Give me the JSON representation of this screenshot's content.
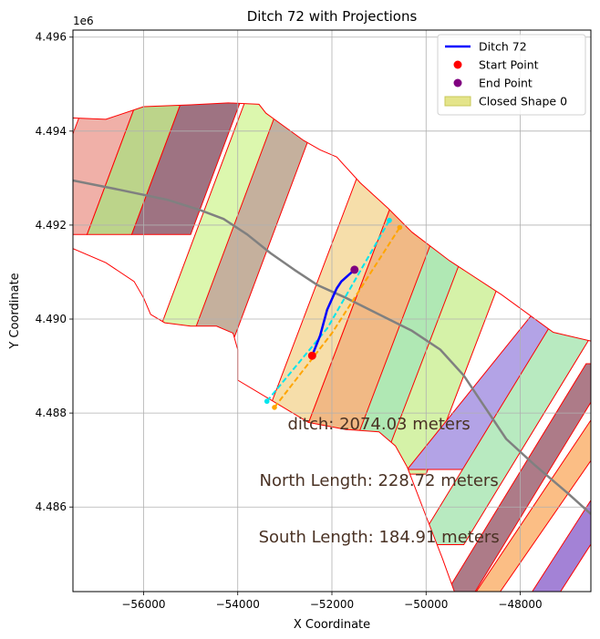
{
  "chart_data": {
    "type": "line",
    "title": "Ditch 72 with Projections",
    "xlabel": "X Coordinate",
    "ylabel": "Y Coordinate",
    "y_offset_label": "1e6",
    "xlim": [
      -57500,
      -46500
    ],
    "ylim": [
      4484200,
      4496150
    ],
    "x_ticks": [
      -56000,
      -54000,
      -52000,
      -50000,
      -48000
    ],
    "x_tick_labels": [
      "−56000",
      "−54000",
      "−52000",
      "−50000",
      "−48000"
    ],
    "y_ticks": [
      4486000,
      4488000,
      4490000,
      4492000,
      4494000,
      4496000
    ],
    "y_tick_labels": [
      "4.486",
      "4.488",
      "4.490",
      "4.492",
      "4.494",
      "4.496"
    ],
    "grid": true,
    "legend_position": "top-right",
    "legend": [
      {
        "label": "Ditch 72",
        "kind": "line",
        "color": "#0000ff"
      },
      {
        "label": "Start Point",
        "kind": "point",
        "color": "#ff0000"
      },
      {
        "label": "End Point",
        "kind": "point",
        "color": "#800080"
      },
      {
        "label": "Closed Shape 0",
        "kind": "patch",
        "color": "#e4e48a"
      }
    ],
    "boundary": [
      [
        -57500,
        4494280
      ],
      [
        -56800,
        4494250
      ],
      [
        -56000,
        4494520
      ],
      [
        -55000,
        4494560
      ],
      [
        -54200,
        4494600
      ],
      [
        -53550,
        4494570
      ],
      [
        -53400,
        4494380
      ],
      [
        -52600,
        4493800
      ],
      [
        -52250,
        4493600
      ],
      [
        -51900,
        4493450
      ],
      [
        -51400,
        4492900
      ],
      [
        -50800,
        4492350
      ],
      [
        -50300,
        4491850
      ],
      [
        -49500,
        4491240
      ],
      [
        -48400,
        4490520
      ],
      [
        -47300,
        4489720
      ],
      [
        -46500,
        4489530
      ],
      [
        -46500,
        4484200
      ],
      [
        -49400,
        4484200
      ],
      [
        -49650,
        4484900
      ],
      [
        -50000,
        4485800
      ],
      [
        -50400,
        4486850
      ],
      [
        -50650,
        4487300
      ],
      [
        -51000,
        4487600
      ],
      [
        -51700,
        4487650
      ],
      [
        -52500,
        4487800
      ],
      [
        -53250,
        4488250
      ],
      [
        -54000,
        4488700
      ],
      [
        -54000,
        4489350
      ],
      [
        -54100,
        4489700
      ],
      [
        -54450,
        4489850
      ],
      [
        -55000,
        4489850
      ],
      [
        -55550,
        4489920
      ],
      [
        -55850,
        4490100
      ],
      [
        -56000,
        4490450
      ],
      [
        -56200,
        4490800
      ],
      [
        -56800,
        4491200
      ],
      [
        -57500,
        4491500
      ]
    ],
    "bands": [
      {
        "color": "#f0b0a8",
        "corners": [
          [
            -58300,
            4491800
          ],
          [
            -56900,
            4495550
          ],
          [
            -55800,
            4495550
          ],
          [
            -57200,
            4491800
          ]
        ]
      },
      {
        "color": "#bcd48a",
        "corners": [
          [
            -57200,
            4491800
          ],
          [
            -55800,
            4495550
          ],
          [
            -54850,
            4495550
          ],
          [
            -56250,
            4491800
          ]
        ]
      },
      {
        "color": "#9e7382",
        "corners": [
          [
            -56250,
            4491800
          ],
          [
            -54850,
            4495550
          ],
          [
            -53600,
            4495550
          ],
          [
            -55000,
            4491800
          ]
        ]
      },
      {
        "color": "#dcf7ae",
        "corners": [
          [
            -56600,
            4486800
          ],
          [
            -54100,
            4493500
          ],
          [
            -53500,
            4493500
          ],
          [
            -56000,
            4486800
          ]
        ]
      },
      {
        "color": "#dcf7ae",
        "corners": [
          [
            -55950,
            4489000
          ],
          [
            -53650,
            4495150
          ],
          [
            -52800,
            4495150
          ],
          [
            -55100,
            4489000
          ]
        ]
      },
      {
        "color": "#c5b09d",
        "corners": [
          [
            -55200,
            4489000
          ],
          [
            -52900,
            4495150
          ],
          [
            -52000,
            4495150
          ],
          [
            -54300,
            4489000
          ]
        ]
      },
      {
        "color": "#f6deaa",
        "corners": [
          [
            -53860,
            4486700
          ],
          [
            -51300,
            4493450
          ],
          [
            -50350,
            4493450
          ],
          [
            -52910,
            4486700
          ]
        ]
      },
      {
        "color": "#f1b985",
        "corners": [
          [
            -52910,
            4486700
          ],
          [
            -50350,
            4493450
          ],
          [
            -49190,
            4493450
          ],
          [
            -51750,
            4486700
          ]
        ]
      },
      {
        "color": "#b0e8b4",
        "corners": [
          [
            -51760,
            4486700
          ],
          [
            -49200,
            4493450
          ],
          [
            -48350,
            4493450
          ],
          [
            -50910,
            4486700
          ]
        ]
      },
      {
        "color": "#d5f2a8",
        "corners": [
          [
            -51000,
            4486700
          ],
          [
            -48500,
            4493250
          ],
          [
            -47500,
            4493250
          ],
          [
            -50000,
            4486700
          ]
        ]
      },
      {
        "color": "#b3a3e6",
        "corners": [
          [
            -50400,
            4486800
          ],
          [
            -47400,
            4490530
          ],
          [
            -46000,
            4490530
          ],
          [
            -49000,
            4486800
          ]
        ]
      },
      {
        "color": "#b8eac0",
        "corners": [
          [
            -50200,
            4485200
          ],
          [
            -47000,
            4490450
          ],
          [
            -46000,
            4490450
          ],
          [
            -49200,
            4485200
          ]
        ]
      },
      {
        "color": "#ad7b88",
        "corners": [
          [
            -49800,
            4483800
          ],
          [
            -46600,
            4489050
          ],
          [
            -46000,
            4489050
          ],
          [
            -49200,
            4483800
          ]
        ]
      },
      {
        "color": "#fbbe85",
        "corners": [
          [
            -49200,
            4483800
          ],
          [
            -46400,
            4488000
          ],
          [
            -45800,
            4488000
          ],
          [
            -48700,
            4483800
          ]
        ]
      },
      {
        "color": "#a382d6",
        "corners": [
          [
            -48000,
            4483800
          ],
          [
            -46400,
            4486300
          ],
          [
            -45800,
            4486300
          ],
          [
            -47400,
            4483800
          ]
        ]
      }
    ],
    "centerline": [
      [
        -57500,
        4492950
      ],
      [
        -56500,
        4492750
      ],
      [
        -55500,
        4492540
      ],
      [
        -54800,
        4492320
      ],
      [
        -54300,
        4492130
      ],
      [
        -53800,
        4491800
      ],
      [
        -53300,
        4491400
      ],
      [
        -52800,
        4491050
      ],
      [
        -52300,
        4490720
      ],
      [
        -51700,
        4490450
      ],
      [
        -51000,
        4490100
      ],
      [
        -50300,
        4489750
      ],
      [
        -49700,
        4489350
      ],
      [
        -49200,
        4488800
      ],
      [
        -48800,
        4488200
      ],
      [
        -48300,
        4487450
      ],
      [
        -47700,
        4486900
      ],
      [
        -47000,
        4486300
      ],
      [
        -46500,
        4485850
      ]
    ],
    "series": [
      {
        "name": "Ditch 72",
        "color": "#0000ff",
        "x": [
          -52420,
          -52250,
          -52100,
          -51900,
          -51800,
          -51520
        ],
        "y": [
          4489220,
          4489650,
          4490200,
          4490650,
          4490800,
          4491050
        ]
      }
    ],
    "projections": [
      {
        "color": "#00e5ee",
        "x": [
          -53380,
          -52100,
          -50780
        ],
        "y": [
          4488250,
          4489800,
          4492100
        ]
      },
      {
        "color": "#ffa500",
        "x": [
          -53220,
          -52000,
          -50560
        ],
        "y": [
          4488120,
          4489700,
          4491950
        ]
      }
    ],
    "start_point": {
      "x": -52420,
      "y": 4489220,
      "color": "#ff0000"
    },
    "end_point": {
      "x": -51520,
      "y": 4491050,
      "color": "#800080"
    },
    "annotations": [
      {
        "text": "ditch: 2074.03 meters",
        "x": -51000,
        "y": 4487650
      },
      {
        "text": "North Length: 228.72 meters",
        "x": -51000,
        "y": 4486450
      },
      {
        "text": "South Length: 184.91 meters",
        "x": -51000,
        "y": 4485250
      }
    ]
  }
}
